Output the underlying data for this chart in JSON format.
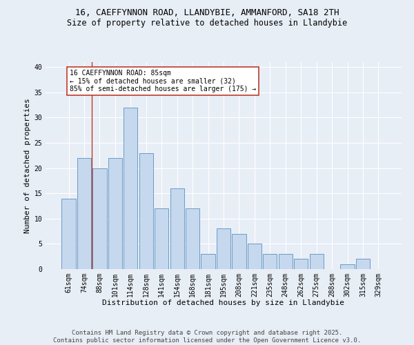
{
  "title_line1": "16, CAEFFYNNON ROAD, LLANDYBIE, AMMANFORD, SA18 2TH",
  "title_line2": "Size of property relative to detached houses in Llandybie",
  "xlabel": "Distribution of detached houses by size in Llandybie",
  "ylabel": "Number of detached properties",
  "categories": [
    "61sqm",
    "74sqm",
    "88sqm",
    "101sqm",
    "114sqm",
    "128sqm",
    "141sqm",
    "154sqm",
    "168sqm",
    "181sqm",
    "195sqm",
    "208sqm",
    "221sqm",
    "235sqm",
    "248sqm",
    "262sqm",
    "275sqm",
    "288sqm",
    "302sqm",
    "315sqm",
    "329sqm"
  ],
  "values": [
    14,
    22,
    20,
    22,
    32,
    23,
    12,
    16,
    12,
    3,
    8,
    7,
    5,
    3,
    3,
    2,
    3,
    0,
    1,
    2,
    0
  ],
  "bar_color": "#c5d8ed",
  "bar_edge_color": "#5a8fc0",
  "vline_color": "#c0392b",
  "vline_x": 1.5,
  "annotation_text": "16 CAEFFYNNON ROAD: 85sqm\n← 15% of detached houses are smaller (32)\n85% of semi-detached houses are larger (175) →",
  "annotation_box_color": "white",
  "annotation_box_edge_color": "#c0392b",
  "ylim": [
    0,
    41
  ],
  "yticks": [
    0,
    5,
    10,
    15,
    20,
    25,
    30,
    35,
    40
  ],
  "footer_text": "Contains HM Land Registry data © Crown copyright and database right 2025.\nContains public sector information licensed under the Open Government Licence v3.0.",
  "bg_color": "#e8eef6",
  "plot_bg_color": "#e8eef6",
  "grid_color": "white",
  "title_fontsize": 9,
  "subtitle_fontsize": 8.5,
  "axis_label_fontsize": 8,
  "tick_fontsize": 7,
  "annotation_fontsize": 7,
  "footer_fontsize": 6.5
}
